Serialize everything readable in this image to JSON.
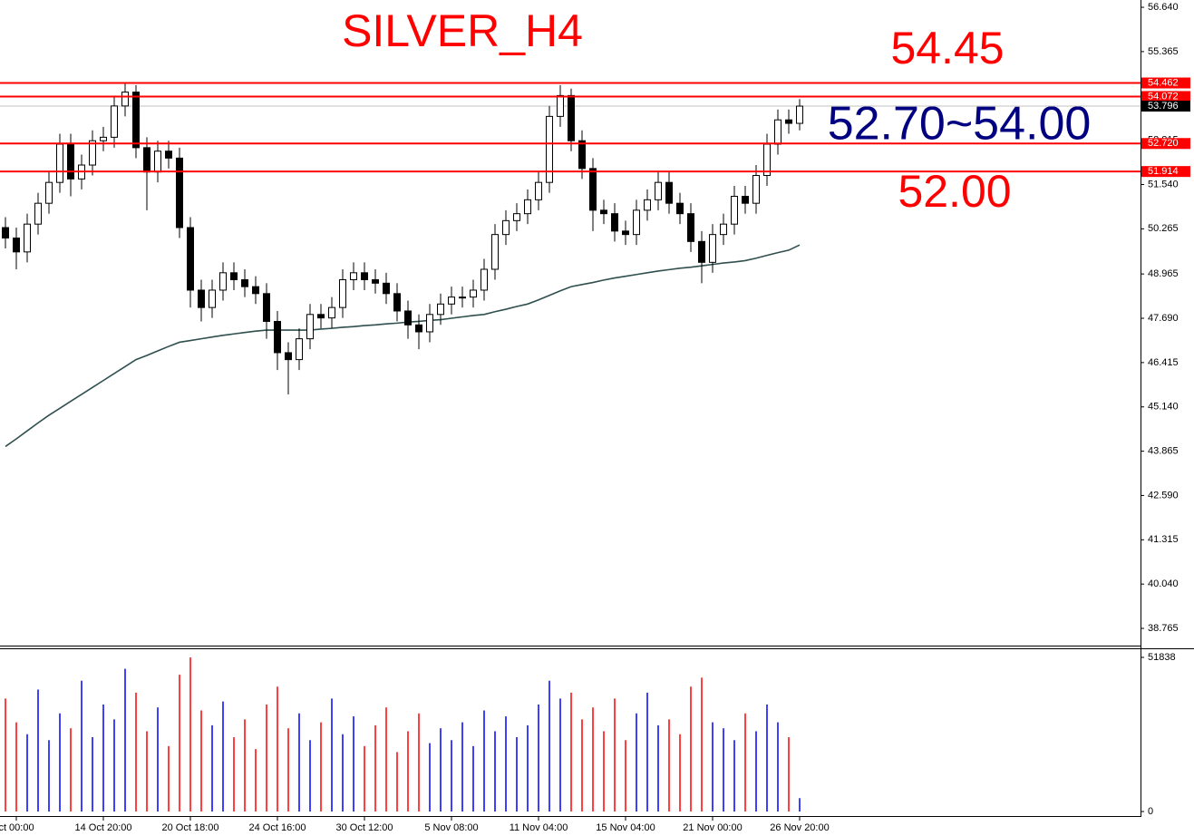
{
  "chart_data": {
    "type": "candlestick",
    "title": "SILVER_H4",
    "annotations": [
      "54.45",
      "52.70~54.00",
      "52.00"
    ],
    "categories": [
      null,
      "ct 00:00",
      null,
      null,
      null,
      null,
      null,
      null,
      null,
      "14 Oct 20:00",
      null,
      null,
      null,
      null,
      null,
      null,
      null,
      "20 Oct 18:00",
      null,
      null,
      null,
      null,
      null,
      null,
      null,
      "24 Oct 16:00",
      null,
      null,
      null,
      null,
      null,
      null,
      null,
      "30 Oct 12:00",
      null,
      null,
      null,
      null,
      null,
      null,
      null,
      "5 Nov 08:00",
      null,
      null,
      null,
      null,
      null,
      null,
      null,
      "11 Nov 04:00",
      null,
      null,
      null,
      null,
      null,
      null,
      null,
      "15 Nov 04:00",
      null,
      null,
      null,
      null,
      null,
      null,
      null,
      "21 Nov 00:00",
      null,
      null,
      null,
      null,
      null,
      null,
      null,
      "26 Nov 20:00"
    ],
    "open": [
      50.3,
      50.0,
      49.6,
      50.4,
      51.0,
      51.6,
      52.7,
      51.7,
      52.1,
      52.8,
      52.9,
      53.8,
      54.2,
      52.6,
      51.9,
      52.5,
      52.3,
      50.3,
      48.5,
      48.0,
      48.5,
      49.0,
      48.8,
      48.6,
      48.4,
      47.6,
      46.7,
      46.5,
      47.1,
      47.8,
      47.7,
      48.0,
      48.8,
      49.0,
      48.8,
      48.7,
      48.4,
      47.9,
      47.5,
      47.3,
      47.8,
      48.1,
      48.3,
      48.3,
      48.5,
      49.1,
      50.1,
      50.5,
      50.7,
      51.1,
      51.6,
      53.5,
      54.1,
      52.8,
      52.0,
      50.8,
      50.7,
      50.2,
      50.1,
      50.8,
      51.1,
      51.6,
      51.0,
      50.7,
      49.9,
      49.3,
      50.1,
      50.4,
      51.2,
      51.0,
      51.8,
      52.7,
      53.4,
      53.3
    ],
    "high": [
      50.6,
      50.3,
      50.7,
      51.3,
      51.9,
      53.0,
      53.0,
      52.4,
      53.1,
      53.2,
      54.1,
      54.45,
      54.4,
      52.9,
      52.8,
      52.8,
      52.6,
      50.6,
      48.8,
      48.8,
      49.3,
      49.3,
      49.1,
      48.9,
      48.7,
      47.9,
      47.0,
      47.4,
      48.1,
      48.1,
      48.3,
      49.1,
      49.3,
      49.3,
      49.1,
      49.0,
      48.7,
      48.2,
      47.8,
      48.1,
      48.4,
      48.6,
      48.6,
      48.8,
      49.4,
      50.4,
      50.8,
      51.0,
      51.4,
      51.9,
      53.8,
      54.4,
      54.3,
      53.1,
      52.3,
      51.1,
      51.0,
      50.5,
      51.1,
      51.4,
      51.9,
      51.9,
      51.3,
      51.0,
      50.2,
      50.4,
      50.7,
      51.5,
      51.5,
      52.1,
      53.0,
      53.7,
      53.7,
      54.0
    ],
    "low": [
      49.7,
      49.1,
      49.3,
      50.1,
      50.7,
      51.3,
      51.2,
      51.4,
      51.8,
      52.5,
      52.6,
      53.5,
      52.3,
      50.8,
      51.6,
      52.0,
      50.0,
      48.0,
      47.6,
      47.7,
      48.2,
      48.5,
      48.3,
      48.1,
      47.1,
      46.2,
      45.5,
      46.2,
      46.8,
      47.4,
      47.4,
      47.7,
      48.5,
      48.5,
      48.4,
      48.1,
      47.6,
      47.1,
      46.8,
      47.0,
      47.5,
      47.8,
      48.0,
      48.0,
      48.2,
      48.8,
      49.8,
      50.2,
      50.4,
      50.8,
      51.3,
      53.2,
      52.5,
      51.7,
      50.2,
      50.4,
      49.9,
      49.8,
      49.8,
      50.5,
      50.8,
      50.7,
      50.4,
      49.6,
      48.7,
      49.0,
      49.8,
      50.1,
      50.7,
      50.7,
      51.5,
      52.4,
      53.0,
      53.1
    ],
    "close": [
      50.0,
      49.6,
      50.4,
      51.0,
      51.6,
      52.7,
      51.7,
      52.1,
      52.8,
      52.9,
      53.8,
      54.2,
      52.6,
      51.9,
      52.5,
      52.3,
      50.3,
      48.5,
      48.0,
      48.5,
      49.0,
      48.8,
      48.6,
      48.4,
      47.6,
      46.7,
      46.5,
      47.1,
      47.8,
      47.7,
      48.0,
      48.8,
      49.0,
      48.8,
      48.7,
      48.4,
      47.9,
      47.5,
      47.3,
      47.8,
      48.1,
      48.3,
      48.3,
      48.5,
      49.1,
      50.1,
      50.5,
      50.7,
      51.1,
      51.6,
      53.5,
      54.1,
      52.8,
      52.0,
      50.8,
      50.7,
      50.2,
      50.1,
      50.8,
      51.1,
      51.6,
      51.0,
      50.7,
      49.9,
      49.3,
      50.1,
      50.4,
      51.2,
      51.0,
      51.8,
      52.7,
      53.4,
      53.3,
      53.796
    ],
    "up_color": "#ffffff",
    "down_color": "#000000",
    "ylim": [
      38.27,
      56.85
    ],
    "yticks": [
      {
        "value": 56.64,
        "label": "56.640"
      },
      {
        "value": 55.365,
        "label": "55.365"
      },
      {
        "value": 54.09,
        "label": "54.090"
      },
      {
        "value": 52.815,
        "label": "52.815"
      },
      {
        "value": 51.54,
        "label": "51.540"
      },
      {
        "value": 50.265,
        "label": "50.265"
      },
      {
        "value": 48.965,
        "label": "48.965"
      },
      {
        "value": 47.69,
        "label": "47.690"
      },
      {
        "value": 46.415,
        "label": "46.415"
      },
      {
        "value": 45.14,
        "label": "45.140"
      },
      {
        "value": 43.865,
        "label": "43.865"
      },
      {
        "value": 42.59,
        "label": "42.590"
      },
      {
        "value": 41.315,
        "label": "41.315"
      },
      {
        "value": 40.04,
        "label": "40.040"
      },
      {
        "value": 38.765,
        "label": "38.765"
      }
    ],
    "ma": {
      "color": "#2f4f4f",
      "values": [
        44.0,
        44.22,
        44.45,
        44.68,
        44.9,
        45.1,
        45.3,
        45.5,
        45.7,
        45.9,
        46.1,
        46.3,
        46.5,
        46.62,
        46.75,
        46.88,
        47.0,
        47.05,
        47.1,
        47.15,
        47.2,
        47.24,
        47.28,
        47.32,
        47.35,
        47.35,
        47.35,
        47.35,
        47.35,
        47.38,
        47.4,
        47.43,
        47.45,
        47.48,
        47.5,
        47.53,
        47.55,
        47.58,
        47.6,
        47.63,
        47.65,
        47.69,
        47.73,
        47.77,
        47.8,
        47.88,
        47.95,
        48.03,
        48.1,
        48.22,
        48.35,
        48.48,
        48.6,
        48.66,
        48.72,
        48.79,
        48.85,
        48.9,
        48.95,
        49.0,
        49.05,
        49.09,
        49.13,
        49.16,
        49.2,
        49.24,
        49.28,
        49.31,
        49.35,
        49.42,
        49.5,
        49.58,
        49.65,
        49.8
      ]
    },
    "hlines": {
      "color": "#ff0000",
      "levels": [
        {
          "value": 54.462,
          "label": "54.462"
        },
        {
          "value": 54.072,
          "label": "54.072"
        },
        {
          "value": 52.72,
          "label": "52.720"
        },
        {
          "value": 51.914,
          "label": "51.914"
        }
      ]
    },
    "current_price": {
      "value": 53.796,
      "label": "53.796"
    },
    "volume": {
      "up_color": "#0000ff",
      "down_color": "#ff0000",
      "values": [
        38000,
        30000,
        26000,
        41000,
        24000,
        33000,
        28000,
        44000,
        25000,
        36000,
        31000,
        48000,
        40000,
        27000,
        35000,
        22000,
        46000,
        51838,
        34000,
        29000,
        37000,
        25000,
        31000,
        21000,
        36000,
        42000,
        28000,
        33000,
        24000,
        30000,
        38000,
        26000,
        32000,
        22000,
        29000,
        35000,
        20000,
        27000,
        33000,
        23000,
        28000,
        24000,
        30000,
        22000,
        34000,
        27000,
        32000,
        25000,
        29000,
        36000,
        44000,
        38000,
        40000,
        31000,
        35000,
        27000,
        38000,
        24000,
        33000,
        40000,
        29000,
        31000,
        26000,
        42000,
        45000,
        30000,
        28000,
        24000,
        33000,
        27000,
        36000,
        30000,
        25000,
        4500
      ],
      "ylim": [
        -1525,
        54583
      ],
      "yticks": [
        51838,
        0
      ]
    }
  }
}
